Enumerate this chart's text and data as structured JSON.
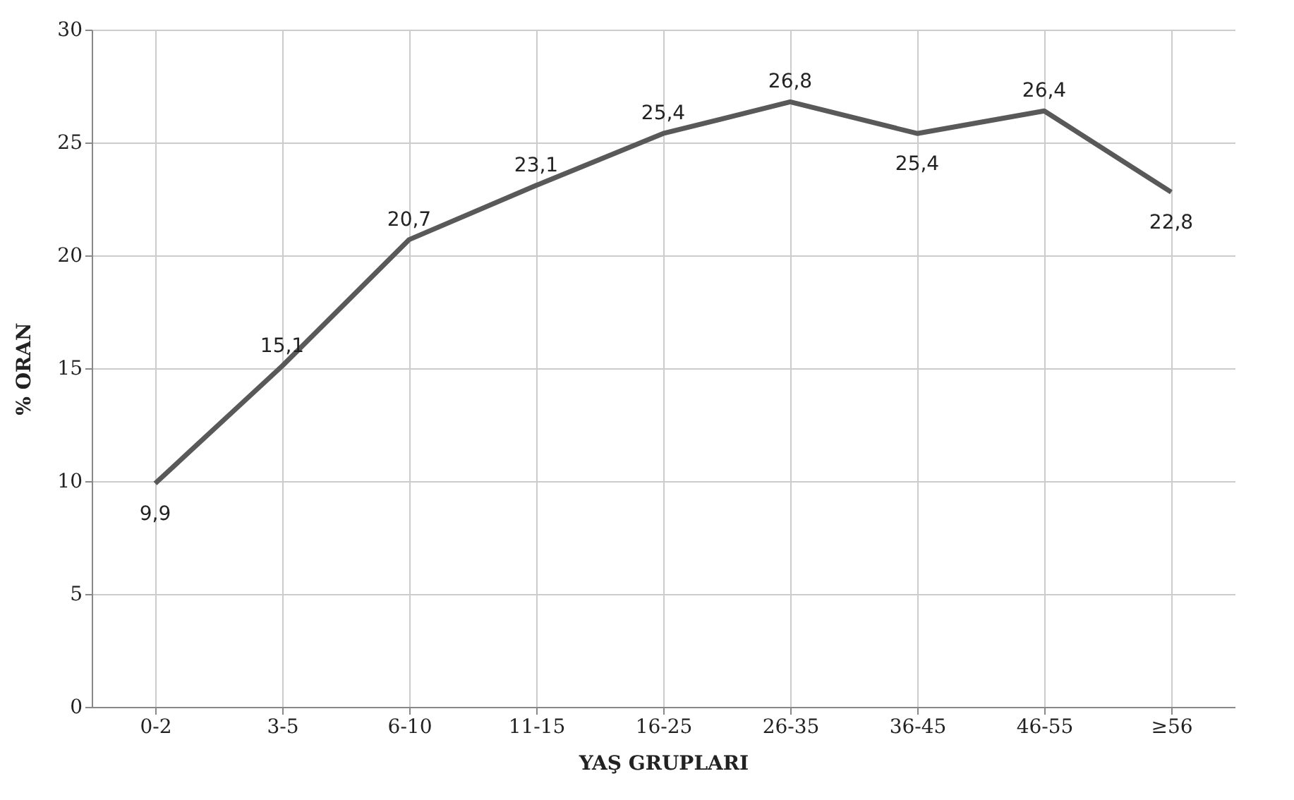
{
  "chart_data": {
    "type": "line",
    "xlabel": "YAŞ GRUPLARI",
    "ylabel": "% ORAN",
    "categories": [
      "0-2",
      "3-5",
      "6-10",
      "11-15",
      "16-25",
      "26-35",
      "36-45",
      "46-55",
      "≥56"
    ],
    "series": [
      {
        "color": "#595959",
        "values": [
          9.9,
          15.1,
          20.7,
          23.1,
          25.4,
          26.8,
          25.4,
          26.4,
          22.8
        ],
        "value_labels": [
          "9,9",
          "15,1",
          "20,7",
          "23,1",
          "25,4",
          "26,8",
          "25,4",
          "26,4",
          "22,8"
        ]
      }
    ],
    "ylim": [
      0,
      30
    ],
    "yticks": [
      0,
      5,
      10,
      15,
      20,
      25,
      30
    ],
    "grid": true,
    "marker": "none",
    "line_style": "solid"
  }
}
